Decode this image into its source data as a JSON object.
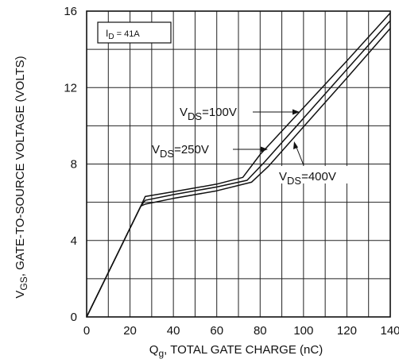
{
  "chart_data": {
    "type": "line",
    "xlabel_main": "Q",
    "xlabel_sub": "g",
    "xlabel_rest": ", TOTAL GATE CHARGE (nC)",
    "ylabel_main": "V",
    "ylabel_sub": "GS",
    "ylabel_rest": ", GATE-TO-SOURCE VOLTAGE (VOLTS)",
    "xlim": [
      0,
      140
    ],
    "ylim": [
      0,
      16
    ],
    "x_ticks": [
      "0",
      "20",
      "40",
      "60",
      "80",
      "100",
      "120",
      "140"
    ],
    "y_ticks": [
      "0",
      "4",
      "8",
      "12",
      "16"
    ],
    "grid": true,
    "condition": {
      "main": "I",
      "sub": "D",
      "rest": " = 41A"
    },
    "series": [
      {
        "name": "V_DS=100V",
        "label_main": "V",
        "label_sub": "DS",
        "label_rest": "=100V",
        "x": [
          0,
          25,
          27,
          40,
          60,
          72,
          80,
          100,
          120,
          140
        ],
        "y": [
          0,
          5.8,
          6.3,
          6.55,
          6.95,
          7.3,
          8.5,
          10.95,
          13.4,
          15.9
        ]
      },
      {
        "name": "V_DS=250V",
        "label_main": "V",
        "label_sub": "DS",
        "label_rest": "=250V",
        "x": [
          0,
          25,
          27,
          40,
          60,
          74,
          82,
          100,
          120,
          140
        ],
        "y": [
          0,
          5.8,
          6.1,
          6.4,
          6.8,
          7.15,
          8.1,
          10.4,
          12.95,
          15.5
        ]
      },
      {
        "name": "V_DS=400V",
        "label_main": "V",
        "label_sub": "DS",
        "label_rest": "=400V",
        "x": [
          0,
          25,
          27,
          40,
          60,
          76,
          84,
          100,
          120,
          140
        ],
        "y": [
          0,
          5.8,
          5.9,
          6.2,
          6.6,
          7.05,
          7.9,
          9.95,
          12.5,
          15.1
        ]
      }
    ]
  }
}
